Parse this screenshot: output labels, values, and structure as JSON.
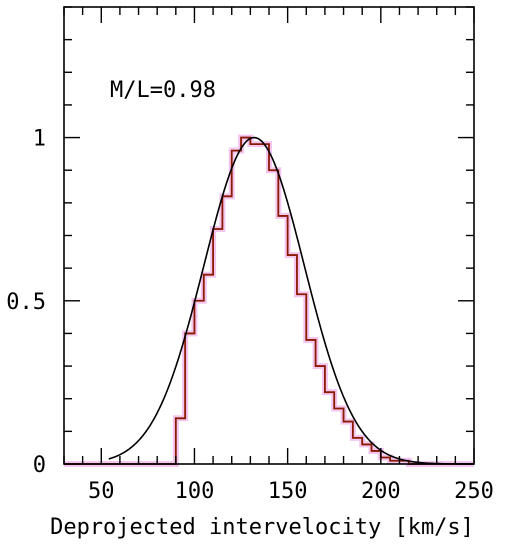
{
  "chart_data": {
    "type": "histogram",
    "title": "",
    "xlabel": "Deprojected intervelocity [km/s]",
    "ylabel": "",
    "xlim": [
      30,
      250
    ],
    "ylim": [
      0,
      1.4
    ],
    "x_ticks": [
      50,
      100,
      150,
      200,
      250
    ],
    "x_tick_labels": [
      "50",
      "100",
      "150",
      "200",
      "250"
    ],
    "y_ticks": [
      0,
      0.5,
      1
    ],
    "y_tick_labels": [
      "0",
      "0.5",
      "1"
    ],
    "x_minor_step": 10,
    "y_minor_step": 0.1,
    "grid": false,
    "annotation": "M/L=0.98",
    "histogram": {
      "color": "#8b1a00",
      "halo_color": "#f3c6f0",
      "bin_edges": [
        30,
        40,
        50,
        60,
        70,
        80,
        90,
        95,
        100,
        105,
        110,
        115,
        120,
        125,
        130,
        135,
        140,
        145,
        150,
        155,
        160,
        165,
        170,
        175,
        180,
        185,
        190,
        195,
        200,
        205,
        210,
        215,
        220,
        230,
        240,
        250
      ],
      "heights": [
        0,
        0,
        0,
        0,
        0,
        0,
        0.14,
        0.4,
        0.5,
        0.58,
        0.72,
        0.82,
        0.96,
        1.0,
        0.98,
        0.98,
        0.9,
        0.76,
        0.64,
        0.52,
        0.38,
        0.3,
        0.22,
        0.17,
        0.13,
        0.08,
        0.06,
        0.04,
        0.02,
        0.01,
        0.01,
        0.0,
        0.0,
        0.0,
        0.0
      ]
    },
    "model_curve": {
      "type": "gaussian",
      "color": "#000000",
      "amplitude": 1.0,
      "mean": 132,
      "sigma": 27,
      "x_range": [
        54,
        250
      ]
    }
  }
}
